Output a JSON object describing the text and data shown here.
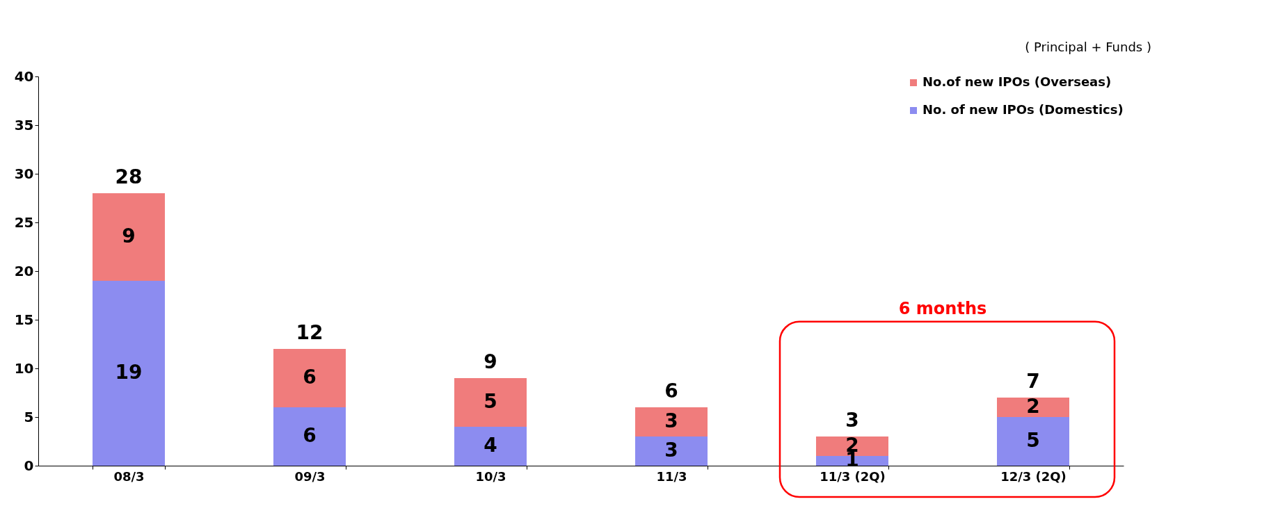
{
  "chart_data": {
    "type": "bar",
    "stacked": true,
    "categories": [
      "08/3",
      "09/3",
      "10/3",
      "11/3",
      "11/3 (2Q)",
      "12/3 (2Q)"
    ],
    "series": [
      {
        "name": "No. of new IPOs (Domestics)",
        "color": "#8c8cf0",
        "values": [
          19,
          6,
          4,
          3,
          1,
          5
        ]
      },
      {
        "name": "No.of new IPOs (Overseas)",
        "color": "#f07c7c",
        "values": [
          9,
          6,
          5,
          3,
          2,
          2
        ]
      }
    ],
    "data_labels": true,
    "totals": [
      "28",
      "12",
      "9",
      "6",
      "3",
      "7"
    ],
    "ylim": [
      0,
      40
    ],
    "yticks": [
      0,
      5,
      10,
      15,
      20,
      25,
      30,
      35,
      40
    ],
    "grid": false,
    "legend": "top right",
    "annotations": [
      "( Principal + Funds )",
      "6 months"
    ]
  }
}
